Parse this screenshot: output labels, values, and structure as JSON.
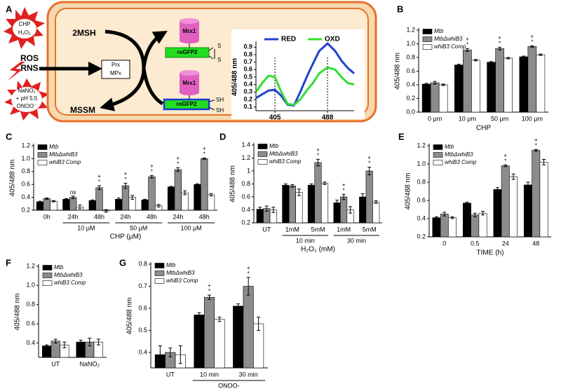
{
  "diagram": {
    "panel": "A",
    "stress1": [
      "CHP",
      "H₂O₂"
    ],
    "ros": "ROS",
    "rns": "RNS",
    "stress2": [
      "NaNO₂",
      "+ pH 5.5",
      "ONOO⁻"
    ],
    "reduced": "2MSH",
    "oxidized": "MSSM",
    "enzymes": [
      "Prx",
      "MPx"
    ],
    "mrx1_top": "Mrx1",
    "mrx1_bottom": "Mrx1",
    "rogfp_top": "roGFP2",
    "rogfp_bottom": "roGFP2",
    "thiols_oxidized": [
      "S",
      "S"
    ],
    "thiols_reduced": [
      "SH",
      "SH"
    ]
  },
  "chart_data": [
    {
      "type": "line",
      "ylabel": "405/488 nm",
      "legend": "upper center",
      "x": [
        375,
        385,
        395,
        405,
        415,
        425,
        435,
        445,
        455,
        465,
        475,
        488,
        500,
        510,
        520,
        530
      ],
      "xlim": [
        375,
        530
      ],
      "xticks": [
        405,
        488
      ],
      "dashed_xtick_lines": true,
      "ylim": [
        0.05,
        0.95
      ],
      "yticks": [
        0.1,
        0.2,
        0.3,
        0.4,
        0.5,
        0.6,
        0.7,
        0.8,
        0.9
      ],
      "series": [
        {
          "name": "RED",
          "color": "#2040d0",
          "values": [
            0.22,
            0.27,
            0.32,
            0.33,
            0.25,
            0.13,
            0.12,
            0.3,
            0.5,
            0.68,
            0.85,
            0.95,
            0.85,
            0.72,
            0.62,
            0.55
          ]
        },
        {
          "name": "OXD",
          "color": "#33dd33",
          "values": [
            0.3,
            0.42,
            0.52,
            0.5,
            0.3,
            0.14,
            0.13,
            0.2,
            0.32,
            0.42,
            0.55,
            0.63,
            0.6,
            0.5,
            0.42,
            0.4
          ]
        }
      ]
    },
    {
      "type": "bar",
      "panel": "B",
      "ylabel": "405/488 nm",
      "xlabel": "CHP",
      "legend": "upper left",
      "categories": [
        "0 μm",
        "10 μm",
        "50 μm",
        "100 μm"
      ],
      "ylim": [
        0,
        1.2
      ],
      "yticks": [
        {
          "value": 0,
          "label": "0.0"
        },
        0.2,
        0.4,
        0.6,
        0.8,
        {
          "value": 1,
          "label": "1.0"
        },
        1.2
      ],
      "series": [
        {
          "name": "Mtb",
          "color": "#000000",
          "values": [
            0.41,
            0.69,
            0.73,
            0.81
          ],
          "errors": [
            0.01,
            0.01,
            0.01,
            0.01
          ]
        },
        {
          "name": "MtbΔwhiB3",
          "color": "#8c8c8c",
          "values": [
            0.43,
            0.91,
            0.93,
            0.96
          ],
          "errors": [
            0.02,
            0.02,
            0.02,
            0.01
          ],
          "significance": [
            null,
            [
              "+",
              "*"
            ],
            [
              "+",
              "*"
            ],
            [
              "+",
              "*"
            ]
          ]
        },
        {
          "name": "whiB3 Comp",
          "color": "#ffffff",
          "values": [
            0.4,
            0.76,
            0.79,
            0.84
          ],
          "errors": [
            0.01,
            0.01,
            0.01,
            0.01
          ]
        }
      ]
    },
    {
      "type": "bar",
      "panel": "C",
      "ylabel": "405/488 nm",
      "xlabel": "CHP (μM)",
      "legend": "upper left",
      "categories": [
        "0h",
        "24h",
        "48h",
        "24h",
        "48h",
        "24h",
        "48h"
      ],
      "category_groups": [
        null,
        "10 μM",
        "10 μM",
        "50 μM",
        "50 μM",
        "100 μM",
        "100 μM"
      ],
      "ylim": [
        0.2,
        1.2
      ],
      "yticks": [
        0.2,
        0.4,
        0.6,
        0.8,
        {
          "value": 1,
          "label": "1.0"
        },
        1.2
      ],
      "series": [
        {
          "name": "Mtb",
          "color": "#000000",
          "values": [
            0.33,
            0.37,
            0.35,
            0.37,
            0.36,
            0.56,
            0.6
          ],
          "errors": [
            0.01,
            0.01,
            0.01,
            0.02,
            0.01,
            0.01,
            0.01
          ]
        },
        {
          "name": "MtbΔwhiB3",
          "color": "#8c8c8c",
          "values": [
            0.38,
            0.4,
            0.55,
            0.58,
            0.72,
            0.83,
            1.0
          ],
          "errors": [
            0.01,
            0.02,
            0.03,
            0.04,
            0.02,
            0.03,
            0.01
          ],
          "significance": [
            null,
            [
              "ns"
            ],
            [
              "+",
              "*"
            ],
            [
              "+",
              "*"
            ],
            [
              "+",
              "*"
            ],
            [
              "+",
              "*"
            ],
            [
              "+",
              "*"
            ]
          ]
        },
        {
          "name": "whiB3 Comp",
          "color": "#ffffff",
          "values": [
            0.34,
            0.25,
            0.19,
            0.4,
            0.27,
            0.47,
            0.44
          ],
          "errors": [
            0.01,
            0.03,
            0.02,
            0.03,
            0.02,
            0.03,
            0.02
          ]
        }
      ]
    },
    {
      "type": "bar",
      "panel": "D",
      "ylabel": "405/488 nm",
      "xlabel": "H₂O₂ (mM)",
      "legend": "upper left",
      "categories": [
        "UT",
        "1mM",
        "5mM",
        "1mM",
        "5mM"
      ],
      "category_groups": [
        null,
        "10 min",
        "10 min",
        "30 min",
        "30 min"
      ],
      "ylim": [
        0.2,
        1.4
      ],
      "yticks": [
        0.2,
        0.4,
        0.6,
        0.8,
        1,
        1.2,
        1.4
      ],
      "series": [
        {
          "name": "Mtb",
          "color": "#000000",
          "values": [
            0.41,
            0.78,
            0.78,
            0.51,
            0.6
          ],
          "errors": [
            0.03,
            0.02,
            0.02,
            0.04,
            0.05
          ]
        },
        {
          "name": "MtbΔwhiB3",
          "color": "#8c8c8c",
          "values": [
            0.42,
            0.77,
            1.13,
            0.6,
            1.0
          ],
          "errors": [
            0.04,
            0.02,
            0.05,
            0.04,
            0.06
          ],
          "significance": [
            null,
            null,
            [
              "+",
              "*"
            ],
            [
              "+",
              "*"
            ],
            [
              "+",
              "*"
            ]
          ]
        },
        {
          "name": "whiB3 Comp",
          "color": "#ffffff",
          "values": [
            0.4,
            0.67,
            0.81,
            0.4,
            0.52
          ],
          "errors": [
            0.04,
            0.05,
            0.02,
            0.05,
            0.02
          ]
        }
      ]
    },
    {
      "type": "bar",
      "panel": "E",
      "ylabel": "405/488 nm",
      "xlabel": "TIME (h)",
      "legend": "upper left",
      "categories": [
        "0",
        "0.5",
        "24",
        "48"
      ],
      "ylim": [
        0.2,
        1.2
      ],
      "yticks": [
        0.2,
        0.4,
        0.6,
        0.8,
        {
          "value": 1,
          "label": "1.0"
        },
        1.2
      ],
      "series": [
        {
          "name": "Mtb",
          "color": "#000000",
          "values": [
            0.41,
            0.57,
            0.72,
            0.77
          ],
          "errors": [
            0.01,
            0.01,
            0.02,
            0.03
          ]
        },
        {
          "name": "MtbΔwhiB3",
          "color": "#8c8c8c",
          "values": [
            0.45,
            0.44,
            0.98,
            1.15
          ],
          "errors": [
            0.02,
            0.02,
            0.01,
            0.01
          ],
          "significance": [
            null,
            null,
            [
              "+",
              "*"
            ],
            [
              "+",
              "*"
            ]
          ]
        },
        {
          "name": "whiB3 Comp",
          "color": "#ffffff",
          "values": [
            0.41,
            0.46,
            0.86,
            1.02
          ],
          "errors": [
            0.01,
            0.02,
            0.03,
            0.03
          ]
        }
      ]
    },
    {
      "type": "bar",
      "panel": "F",
      "ylabel": "405/488 nm",
      "legend": "upper left",
      "categories": [
        "UT",
        "NaNO₂"
      ],
      "ylim": [
        0.25,
        1.2
      ],
      "yticks": [
        0.4,
        0.6,
        0.8,
        {
          "value": 1,
          "label": "1.0"
        },
        1.2
      ],
      "series": [
        {
          "name": "Mtb",
          "color": "#000000",
          "values": [
            0.37,
            0.41
          ],
          "errors": [
            0.01,
            0.02
          ]
        },
        {
          "name": "MtbΔwhiB3",
          "color": "#8c8c8c",
          "values": [
            0.42,
            0.41
          ],
          "errors": [
            0.02,
            0.04
          ]
        },
        {
          "name": "whiB3 Comp",
          "color": "#ffffff",
          "values": [
            0.38,
            0.41
          ],
          "errors": [
            0.03,
            0.03
          ]
        }
      ]
    },
    {
      "type": "bar",
      "panel": "G",
      "ylabel": "405/488 nm",
      "legend": "upper left",
      "categories": [
        "UT",
        "10 min",
        "30 min"
      ],
      "category_groups": [
        null,
        "ONOO-",
        "ONOO-"
      ],
      "ylim": [
        0.33,
        0.8
      ],
      "yticks": [
        0.4,
        0.5,
        0.6,
        0.7,
        0.8
      ],
      "series": [
        {
          "name": "Mtb",
          "color": "#000000",
          "values": [
            0.39,
            0.57,
            0.61
          ],
          "errors": [
            0.04,
            0.01,
            0.01
          ]
        },
        {
          "name": "MtbΔwhiB3",
          "color": "#8c8c8c",
          "values": [
            0.4,
            0.65,
            0.7
          ],
          "errors": [
            0.02,
            0.01,
            0.04
          ],
          "significance": [
            null,
            [
              "+",
              "*"
            ],
            [
              "+",
              "*"
            ]
          ]
        },
        {
          "name": "whiB3 Comp",
          "color": "#ffffff",
          "values": [
            0.39,
            0.55,
            0.53
          ],
          "errors": [
            0.04,
            0.01,
            0.03
          ]
        }
      ]
    }
  ]
}
